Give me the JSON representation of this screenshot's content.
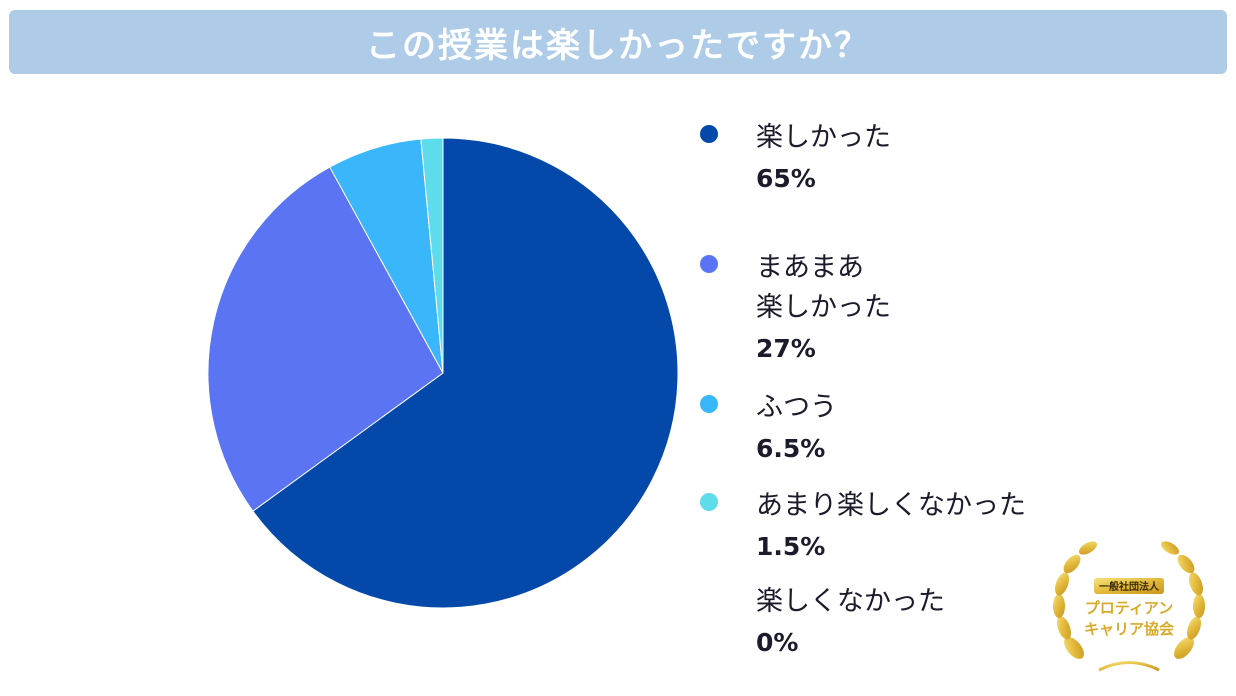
{
  "title": "この授業は楽しかったですか？",
  "chart_data": {
    "type": "pie",
    "categories": [
      "楽しかった",
      "まあまあ\n楽しかった",
      "ふつう",
      "あまり楽しくなかった",
      "楽しくなかった"
    ],
    "values": [
      65,
      27,
      6.5,
      1.5,
      0
    ],
    "value_labels": [
      "65%",
      "27%",
      "6.5%",
      "1.5%",
      "0%"
    ],
    "colors": [
      "#0449a9",
      "#5a74f3",
      "#3ab6fb",
      "#5fdcec",
      "#cccccc"
    ],
    "start_angle": "12 o'clock",
    "direction": "clockwise",
    "legend_placement": "right"
  },
  "badge": {
    "line1": "一般社団法人",
    "line2": "プロティアン",
    "line3": "キャリア協会"
  }
}
